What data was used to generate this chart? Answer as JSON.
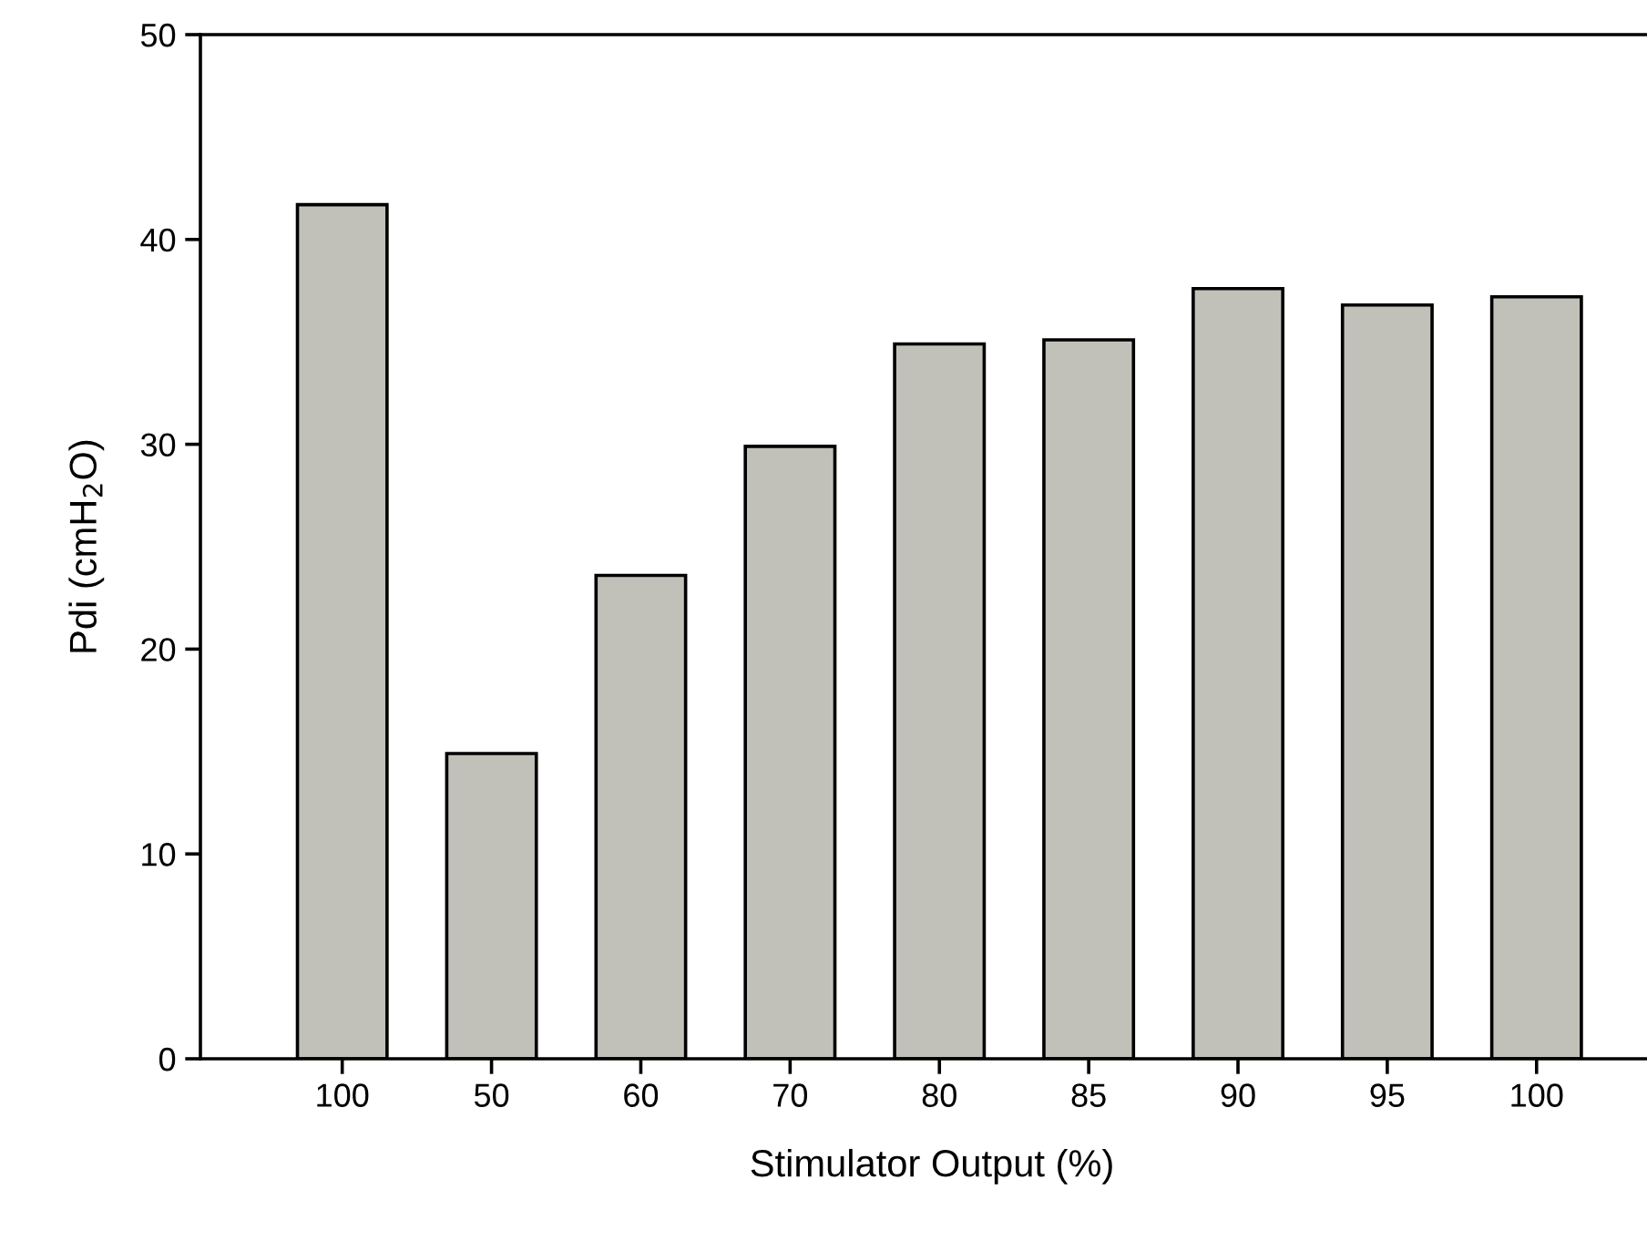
{
  "chart_data": {
    "type": "bar",
    "xlabel": "Stimulator Output (%)",
    "ylabel": "Pdi (cmH$_{2}$O)",
    "categories": [
      "100",
      "50",
      "60",
      "70",
      "80",
      "85",
      "90",
      "95",
      "100"
    ],
    "values": [
      41.7,
      14.9,
      23.6,
      29.9,
      34.9,
      35.1,
      37.6,
      36.8,
      37.2
    ],
    "color": "#c2c1b9",
    "ylim": [
      0,
      50
    ],
    "yticks": [
      0,
      10,
      20,
      30,
      40,
      50
    ],
    "grid": false,
    "legend": false
  }
}
